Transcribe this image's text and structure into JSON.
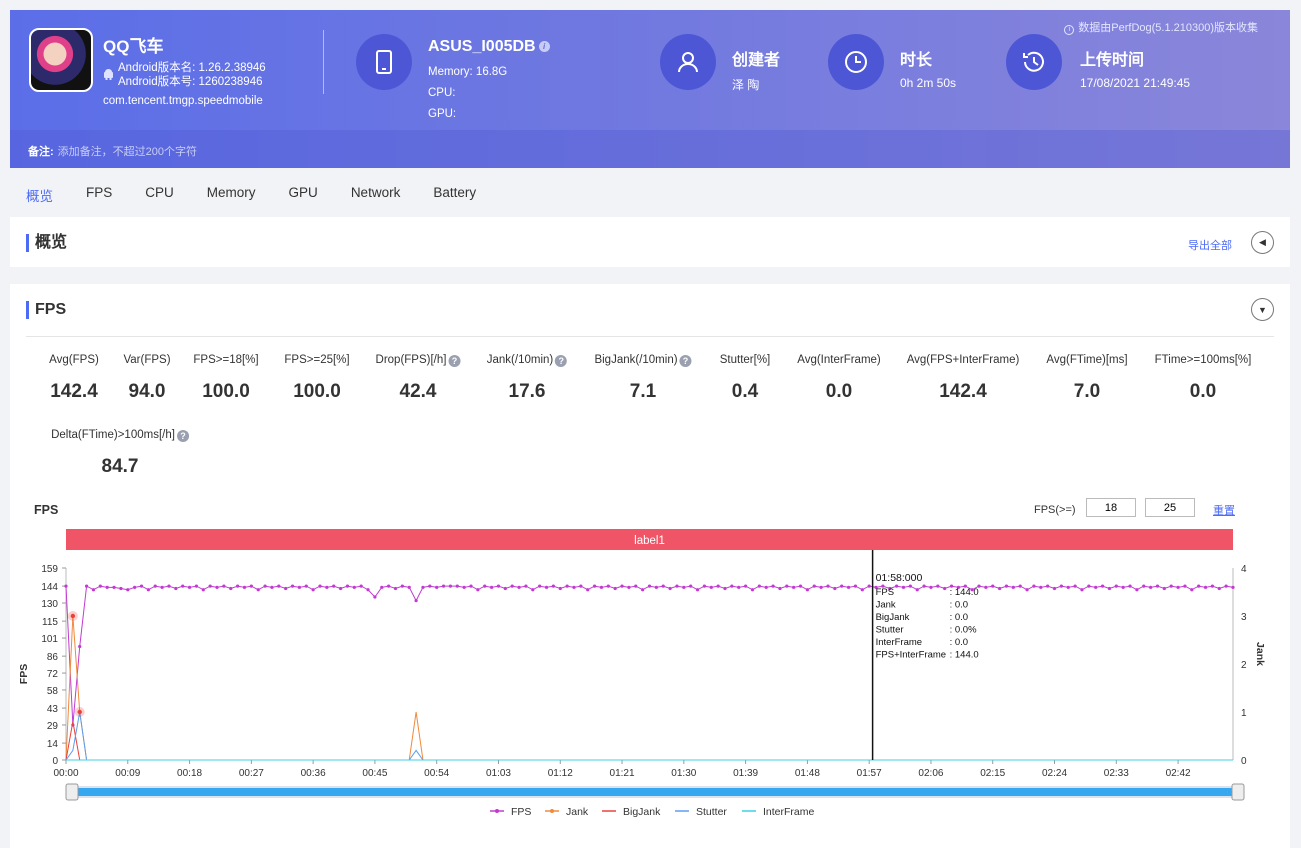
{
  "app": {
    "name": "QQ飞车",
    "version_name": "Android版本名: 1.26.2.38946",
    "version_code": "Android版本号: 1260238946",
    "package": "com.tencent.tmgp.speedmobile"
  },
  "device": {
    "name": "ASUS_I005DB",
    "memory": "Memory: 16.8G",
    "cpu": "CPU:",
    "gpu": "GPU:"
  },
  "creator": {
    "title": "创建者",
    "value": "泽 陶"
  },
  "duration": {
    "title": "时长",
    "value": "0h 2m 50s"
  },
  "upload": {
    "title": "上传时间",
    "value": "17/08/2021 21:49:45"
  },
  "notice": "数据由PerfDog(5.1.210300)版本收集",
  "note": {
    "label": "备注:",
    "placeholder": "添加备注，不超过200个字符"
  },
  "tabs": [
    "概览",
    "FPS",
    "CPU",
    "Memory",
    "GPU",
    "Network",
    "Battery"
  ],
  "overview": {
    "title": "概览",
    "export_label": "导出全部"
  },
  "fps_section": {
    "title": "FPS",
    "stats": [
      {
        "label": "Avg(FPS)",
        "value": "142.4"
      },
      {
        "label": "Var(FPS)",
        "value": "94.0"
      },
      {
        "label": "FPS>=18[%]",
        "value": "100.0"
      },
      {
        "label": "FPS>=25[%]",
        "value": "100.0"
      },
      {
        "label": "Drop(FPS)[/h]",
        "value": "42.4"
      },
      {
        "label": "Jank(/10min)",
        "value": "17.6"
      },
      {
        "label": "BigJank(/10min)",
        "value": "7.1"
      },
      {
        "label": "Stutter[%]",
        "value": "0.4"
      },
      {
        "label": "Avg(InterFrame)",
        "value": "0.0"
      },
      {
        "label": "Avg(FPS+InterFrame)",
        "value": "142.4"
      },
      {
        "label": "Avg(FTime)[ms]",
        "value": "7.0"
      },
      {
        "label": "FTime>=100ms[%]",
        "value": "0.0"
      },
      {
        "label": "Delta(FTime)>100ms[/h]",
        "value": "84.7"
      }
    ],
    "chart_title": "FPS",
    "filter_label": "FPS(>=)",
    "filter_1": "18",
    "filter_2": "25",
    "reset_label": "重置"
  },
  "tooltip": {
    "time": "01:58:000",
    "rows": [
      {
        "k": "FPS",
        "v": ": 144.0"
      },
      {
        "k": "Jank",
        "v": ": 0.0"
      },
      {
        "k": "BigJank",
        "v": ": 0.0"
      },
      {
        "k": "Stutter",
        "v": ": 0.0%"
      },
      {
        "k": "InterFrame",
        "v": ": 0.0"
      },
      {
        "k": "FPS+InterFrame",
        "v": ": 144.0"
      }
    ]
  },
  "colors": {
    "fps": "#c23ad1",
    "jank": "#f08a3c",
    "bigjank": "#e8423c",
    "stutter": "#5b9ff0",
    "interframe": "#3fd0e6",
    "label_band": "#ef5566",
    "accent": "#4d6bf5"
  },
  "chart_data": {
    "type": "line",
    "label_band": "label1",
    "xlabel": "",
    "ylabel": "FPS",
    "y2label": "Jank",
    "y_ticks": [
      0,
      14,
      29,
      43,
      58,
      72,
      86,
      101,
      115,
      130,
      144,
      159
    ],
    "y2_ticks": [
      0,
      1,
      2,
      3,
      4
    ],
    "ylim": [
      0,
      159
    ],
    "y2lim": [
      0,
      4
    ],
    "xlim": [
      0,
      170
    ],
    "x_ticks": [
      "00:00",
      "00:09",
      "00:18",
      "00:27",
      "00:36",
      "00:45",
      "00:54",
      "01:03",
      "01:12",
      "01:21",
      "01:30",
      "01:39",
      "01:48",
      "01:57",
      "02:06",
      "02:15",
      "02:24",
      "02:33",
      "02:42"
    ],
    "x_tick_seconds": [
      0,
      9,
      18,
      27,
      36,
      45,
      54,
      63,
      72,
      81,
      90,
      99,
      108,
      117,
      126,
      135,
      144,
      153,
      162
    ],
    "cursor_seconds": 117.5,
    "fps_baseline": 144,
    "fps_dips": [
      [
        -1,
        144
      ],
      [
        0,
        144
      ],
      [
        1,
        29
      ],
      [
        2,
        94
      ],
      [
        3,
        144
      ],
      [
        7,
        143
      ],
      [
        9,
        141
      ],
      [
        45,
        135
      ],
      [
        46,
        143
      ],
      [
        51,
        132
      ],
      [
        52,
        143
      ],
      [
        56,
        144
      ]
    ],
    "fps_small_var": [
      142,
      144,
      143,
      144,
      141,
      144,
      143,
      144
    ],
    "series": [
      {
        "name": "FPS",
        "y_axis": "left"
      },
      {
        "name": "Jank",
        "y_axis": "right",
        "points": [
          [
            0,
            0
          ],
          [
            1,
            3
          ],
          [
            2,
            1
          ],
          [
            3,
            0
          ],
          [
            50,
            0
          ],
          [
            51,
            1
          ],
          [
            52,
            0
          ]
        ]
      },
      {
        "name": "BigJank",
        "y_axis": "right",
        "points": [
          [
            0,
            0
          ],
          [
            1,
            0.8
          ],
          [
            2,
            0
          ],
          [
            170,
            0
          ]
        ]
      },
      {
        "name": "Stutter",
        "y_axis": "right",
        "points": [
          [
            0,
            0
          ],
          [
            1,
            0.2
          ],
          [
            2,
            1
          ],
          [
            3,
            0
          ],
          [
            50,
            0
          ],
          [
            51,
            0.2
          ],
          [
            52,
            0
          ]
        ]
      },
      {
        "name": "InterFrame",
        "y_axis": "right",
        "points": [
          [
            0,
            0
          ],
          [
            170,
            0
          ]
        ]
      }
    ],
    "legend": [
      "FPS",
      "Jank",
      "BigJank",
      "Stutter",
      "InterFrame"
    ],
    "legend_position": "bottom"
  }
}
